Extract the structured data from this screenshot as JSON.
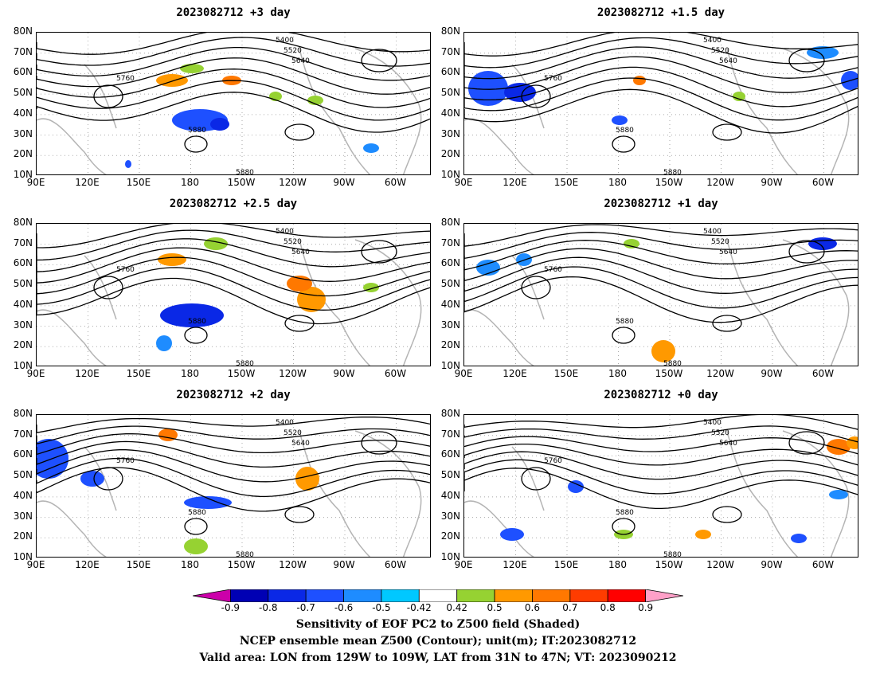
{
  "panels": [
    {
      "title": "2023082712  +3 day",
      "contours": [
        "5400",
        "5520",
        "5640",
        "5760",
        "5880",
        "5880"
      ]
    },
    {
      "title": "2023082712  +1.5 day",
      "contours": [
        "5400",
        "5520",
        "5640",
        "5760",
        "5880",
        "5880"
      ]
    },
    {
      "title": "2023082712  +2.5 day",
      "contours": [
        "5400",
        "5520",
        "5640",
        "5760",
        "5880",
        "5880"
      ]
    },
    {
      "title": "2023082712  +1 day",
      "contours": [
        "5400",
        "5520",
        "5640",
        "5760",
        "5880",
        "5880"
      ]
    },
    {
      "title": "2023082712  +2 day",
      "contours": [
        "5400",
        "5520",
        "5640",
        "5760",
        "5880",
        "5880"
      ]
    },
    {
      "title": "2023082712  +0 day",
      "contours": [
        "5400",
        "5520",
        "5640",
        "5760",
        "5880",
        "5880"
      ]
    }
  ],
  "lat_labels": [
    "80N",
    "70N",
    "60N",
    "50N",
    "40N",
    "30N",
    "20N",
    "10N"
  ],
  "lon_labels": [
    "90E",
    "120E",
    "150E",
    "180",
    "150W",
    "120W",
    "90W",
    "60W"
  ],
  "colorbar": {
    "labels": [
      "-0.9",
      "-0.8",
      "-0.7",
      "-0.6",
      "-0.5",
      "-0.42",
      "0.42",
      "0.5",
      "0.6",
      "0.7",
      "0.8",
      "0.9"
    ],
    "colors": [
      "#cc00aa",
      "#0000b4",
      "#0a28e6",
      "#1e50ff",
      "#1e8cff",
      "#00c8ff",
      "#ffffff",
      "#96d232",
      "#ff9900",
      "#ff7800",
      "#ff3c00",
      "#ff0000",
      "#ffa0c8"
    ]
  },
  "caption": [
    "Sensitivity of EOF PC2 to Z500 field (Shaded)",
    "NCEP ensemble mean Z500 (Contour); unit(m); IT:2023082712",
    "Valid area: LON from 129W to 109W, LAT from 31N to 47N; VT: 2023090212"
  ]
}
